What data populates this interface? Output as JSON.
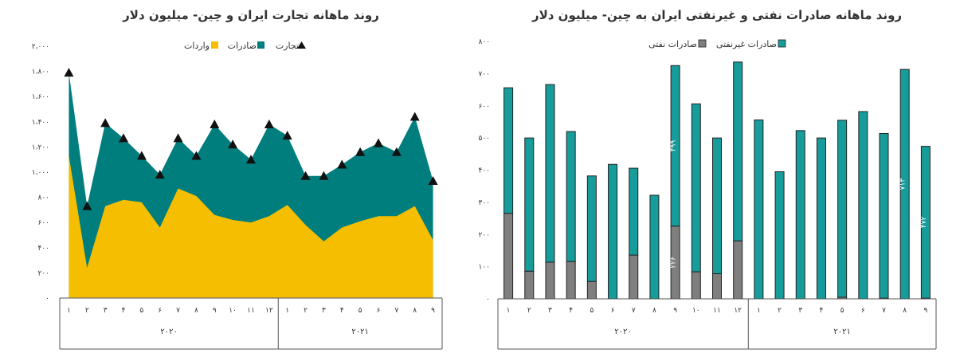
{
  "chart_data": [
    {
      "type": "area",
      "title": "روند ماهانه تجارت ایران و چین- میلیون دلار",
      "legend": [
        "واردات",
        "صادرات",
        "تجارت"
      ],
      "categories": [
        "۱",
        "۲",
        "۳",
        "۴",
        "۵",
        "۶",
        "۷",
        "۸",
        "۹",
        "۱۰",
        "۱۱",
        "۱۲",
        "۱",
        "۲",
        "۳",
        "۴",
        "۵",
        "۶",
        "۷",
        "۸",
        "۹"
      ],
      "years": [
        "۲۰۲۰",
        "۲۰۲۱"
      ],
      "ylim": [
        0,
        2000
      ],
      "yticks": [
        "۰",
        "۲۰۰",
        "۴۰۰",
        "۶۰۰",
        "۸۰۰",
        "۱،۰۰۰",
        "۱،۲۰۰",
        "۱،۴۰۰",
        "۱،۶۰۰",
        "۱،۸۰۰",
        "۲،۰۰۰"
      ],
      "ytick_values": [
        0,
        200,
        400,
        600,
        800,
        1000,
        1200,
        1400,
        1600,
        1800,
        2000
      ],
      "series": [
        {
          "name": "واردات",
          "color": "#F6BE00",
          "values": [
            1130,
            240,
            730,
            780,
            760,
            560,
            870,
            810,
            660,
            620,
            600,
            650,
            740,
            580,
            450,
            560,
            610,
            650,
            650,
            730,
            460
          ]
        },
        {
          "name": "صادرات",
          "color": "#007E7E",
          "values": [
            660,
            490,
            660,
            490,
            370,
            420,
            400,
            320,
            720,
            600,
            500,
            730,
            550,
            390,
            520,
            500,
            550,
            580,
            510,
            710,
            470
          ]
        },
        {
          "name": "تجارت",
          "color": "#111111",
          "values": [
            1790,
            730,
            1390,
            1270,
            1130,
            980,
            1270,
            1130,
            1380,
            1220,
            1100,
            1380,
            1290,
            970,
            970,
            1060,
            1160,
            1230,
            1160,
            1440,
            930
          ]
        }
      ]
    },
    {
      "type": "bar",
      "title": "روند ماهانه صادرات نفتی و غیرنفتی ایران به چین- میلیون دلار",
      "legend": [
        "صادرات غیرنفتی",
        "صادرات نفتی"
      ],
      "categories": [
        "۱",
        "۲",
        "۳",
        "۴",
        "۵",
        "۶",
        "۷",
        "۸",
        "۹",
        "۱۰",
        "۱۱",
        "۱۲",
        "۱",
        "۲",
        "۳",
        "۴",
        "۵",
        "۶",
        "۷",
        "۸",
        "۹"
      ],
      "years": [
        "۲۰۲۰",
        "۲۰۲۱"
      ],
      "ylim": [
        0,
        800
      ],
      "yticks": [
        "۰",
        "۱۰۰",
        "۲۰۰",
        "۳۰۰",
        "۴۰۰",
        "۵۰۰",
        "۶۰۰",
        "۷۰۰",
        "۸۰۰"
      ],
      "ytick_values": [
        0,
        100,
        200,
        300,
        400,
        500,
        600,
        700,
        800
      ],
      "series": [
        {
          "name": "صادرات نفتی",
          "color": "#7F7F7F",
          "values": [
            266,
            86,
            114,
            116,
            54,
            0,
            136,
            0,
            226,
            84,
            78,
            180,
            0,
            0,
            0,
            0,
            5,
            0,
            2,
            0,
            2
          ]
        },
        {
          "name": "صادرات غیرنفتی",
          "color": "#179C9C",
          "values": [
            390,
            414,
            552,
            404,
            328,
            418,
            270,
            322,
            499,
            522,
            422,
            556,
            556,
            395,
            523,
            500,
            550,
            582,
            512,
            713,
            472
          ]
        }
      ],
      "data_labels": {
        "series": "صادرات غیرنفتی",
        "indices": [
          8,
          19,
          20
        ],
        "labels": [
          "۴۹۹",
          "۷۱۳",
          "۴۷۲"
        ]
      }
    }
  ]
}
